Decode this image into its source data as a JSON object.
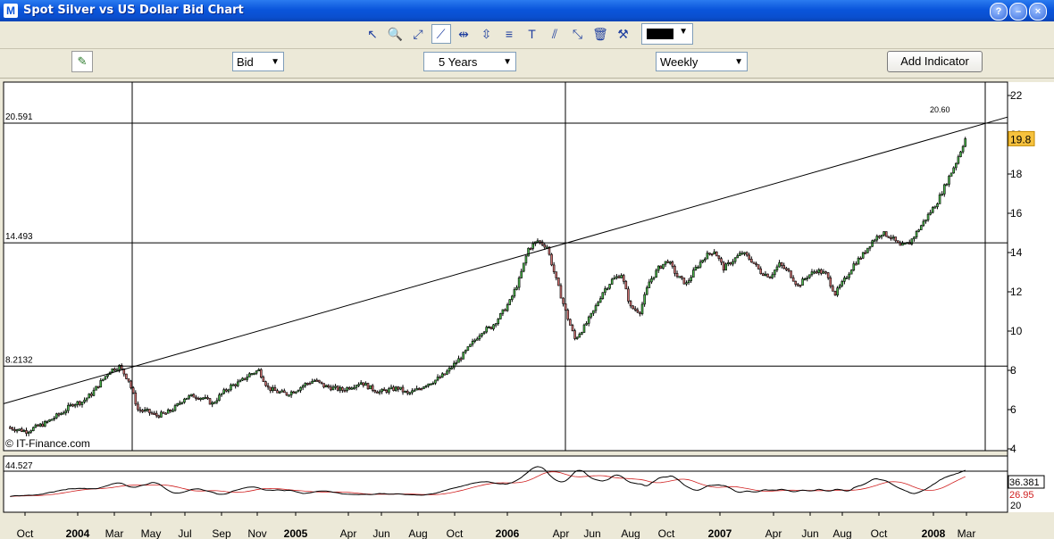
{
  "window": {
    "title": "Spot Silver vs US Dollar Bid Chart",
    "app_icon": "M"
  },
  "toolbar": {
    "tools": [
      {
        "name": "pointer-tool",
        "icon": "pointer-icon",
        "glyph": "↖"
      },
      {
        "name": "zoom-tool",
        "icon": "zoom-icon",
        "glyph": "🔍"
      },
      {
        "name": "line-tool",
        "icon": "segment-line-icon",
        "glyph": "⤢"
      },
      {
        "name": "trend-line-tool",
        "icon": "trend-line-icon",
        "glyph": "⟋",
        "active": true
      },
      {
        "name": "horizontal-line-tool",
        "icon": "horizontal-line-icon",
        "glyph": "⇹"
      },
      {
        "name": "vertical-line-tool",
        "icon": "vertical-line-icon",
        "glyph": "⇳"
      },
      {
        "name": "fibonacci-tool",
        "icon": "fibonacci-icon",
        "glyph": "≡"
      },
      {
        "name": "text-tool",
        "icon": "text-icon",
        "glyph": "T"
      },
      {
        "name": "channel-tool",
        "icon": "channel-icon",
        "glyph": "⫽"
      },
      {
        "name": "extend-line-tool",
        "icon": "extend-line-icon",
        "glyph": "⤡"
      },
      {
        "name": "delete-tool",
        "icon": "trash-icon",
        "glyph": "🗑"
      },
      {
        "name": "settings-tool",
        "icon": "tools-icon",
        "glyph": "⚒"
      }
    ],
    "line_color": "#000000"
  },
  "controls": {
    "price_type": "Bid",
    "period": "5 Years",
    "interval": "Weekly",
    "add_indicator_label": "Add Indicator"
  },
  "chart": {
    "watermark": "© IT-Finance.com",
    "current_price_label": "19.8",
    "trend_target_label": "20.60",
    "y_ticks": [
      "22",
      "20",
      "18",
      "16",
      "14",
      "12",
      "10",
      "8",
      "6",
      "4"
    ],
    "h_lines": [
      {
        "label": "20.591",
        "value": 20.591
      },
      {
        "label": "14.493",
        "value": 14.493
      },
      {
        "label": "8.2132",
        "value": 8.2132
      }
    ],
    "indicator": {
      "level_label": "44.527",
      "value1_label": "36.381",
      "value2_label": "26.95",
      "tick_label": "20"
    },
    "x_labels": [
      {
        "t": "Oct",
        "bold": false
      },
      {
        "t": "2004",
        "bold": true
      },
      {
        "t": "Mar",
        "bold": false
      },
      {
        "t": "May",
        "bold": false
      },
      {
        "t": "Jul",
        "bold": false
      },
      {
        "t": "Sep",
        "bold": false
      },
      {
        "t": "Nov",
        "bold": false
      },
      {
        "t": "2005",
        "bold": true
      },
      {
        "t": "Apr",
        "bold": false
      },
      {
        "t": "Jun",
        "bold": false
      },
      {
        "t": "Aug",
        "bold": false
      },
      {
        "t": "Oct",
        "bold": false
      },
      {
        "t": "2006",
        "bold": true
      },
      {
        "t": "Apr",
        "bold": false
      },
      {
        "t": "Jun",
        "bold": false
      },
      {
        "t": "Aug",
        "bold": false
      },
      {
        "t": "Oct",
        "bold": false
      },
      {
        "t": "2007",
        "bold": true
      },
      {
        "t": "Apr",
        "bold": false
      },
      {
        "t": "Jun",
        "bold": false
      },
      {
        "t": "Aug",
        "bold": false
      },
      {
        "t": "Oct",
        "bold": false
      },
      {
        "t": "2008",
        "bold": true
      },
      {
        "t": "Mar",
        "bold": false
      }
    ],
    "up_color": "#4CB84C",
    "down_color": "#D07070",
    "price_path": [
      5.1,
      5.0,
      4.9,
      5.1,
      5.3,
      5.6,
      5.9,
      6.3,
      6.4,
      6.8,
      7.4,
      8.0,
      8.2,
      7.5,
      6.0,
      5.9,
      5.7,
      5.8,
      6.1,
      6.6,
      6.7,
      6.6,
      6.3,
      6.8,
      7.2,
      7.4,
      7.8,
      8.0,
      7.1,
      6.9,
      6.8,
      7.0,
      7.3,
      7.5,
      7.2,
      7.1,
      7.0,
      7.2,
      7.4,
      7.1,
      6.9,
      7.0,
      7.1,
      6.8,
      7.0,
      7.3,
      7.5,
      7.8,
      8.3,
      8.8,
      9.4,
      10.0,
      10.2,
      10.8,
      11.5,
      12.6,
      14.2,
      14.6,
      14.3,
      12.6,
      11.0,
      9.6,
      10.2,
      11.0,
      12.0,
      12.6,
      12.9,
      11.2,
      11.0,
      12.5,
      13.2,
      13.6,
      12.8,
      12.4,
      13.2,
      13.8,
      14.1,
      13.2,
      13.6,
      14.0,
      13.6,
      13.0,
      12.8,
      13.4,
      13.0,
      12.3,
      12.8,
      13.1,
      12.9,
      11.9,
      12.6,
      13.4,
      13.9,
      14.6,
      15.0,
      14.8,
      14.3,
      14.5,
      15.2,
      15.9,
      16.6,
      17.6,
      18.6,
      19.8
    ]
  }
}
